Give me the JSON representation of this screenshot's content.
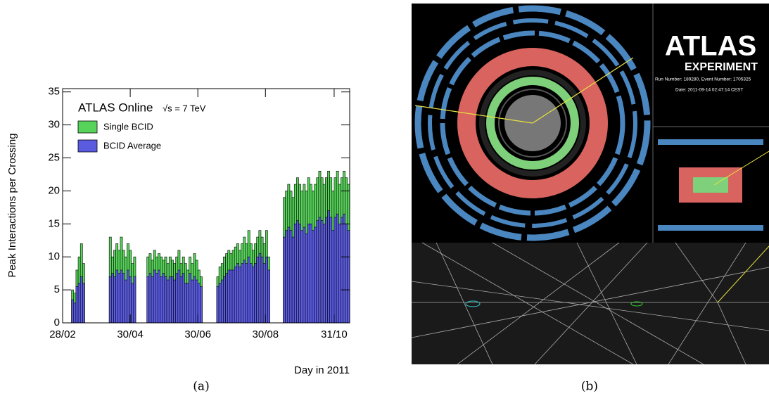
{
  "chart_data": {
    "type": "bar",
    "ylabel": "Peak Interactions per Crossing",
    "xlabel": "Day in 2011",
    "annotations": [
      "ATLAS Online",
      "√s = 7 TeV"
    ],
    "x": [
      68,
      70,
      72,
      74,
      76,
      78,
      102,
      104,
      106,
      108,
      110,
      112,
      114,
      116,
      118,
      120,
      122,
      124,
      136,
      138,
      140,
      142,
      144,
      146,
      148,
      150,
      152,
      154,
      156,
      158,
      160,
      162,
      164,
      166,
      168,
      170,
      172,
      174,
      176,
      178,
      180,
      182,
      184,
      199,
      201,
      203,
      205,
      207,
      209,
      211,
      213,
      215,
      217,
      219,
      221,
      223,
      225,
      227,
      229,
      231,
      233,
      235,
      237,
      239,
      241,
      243,
      245,
      259,
      261,
      263,
      265,
      267,
      269,
      271,
      273,
      275,
      277,
      279,
      281,
      283,
      285,
      287,
      289,
      291,
      293,
      295,
      297,
      299,
      301,
      303,
      305,
      307,
      309,
      311,
      313,
      315,
      317
    ],
    "series": [
      {
        "name": "Single BCID",
        "color": "#57d35a",
        "values": [
          5,
          4.5,
          8,
          10,
          12,
          9,
          13,
          10,
          11,
          12,
          11,
          13,
          11,
          10,
          12,
          11,
          9,
          10,
          10,
          10.5,
          9.5,
          11,
          10,
          10.5,
          10,
          9.5,
          10,
          9,
          10,
          9.5,
          9,
          10,
          11,
          9,
          10,
          9,
          8,
          10,
          9,
          10.5,
          9.5,
          8,
          7,
          7,
          8.5,
          9,
          10,
          10.5,
          11,
          10.5,
          11,
          11.5,
          12,
          11,
          12,
          13,
          12,
          14,
          12,
          11,
          12,
          13,
          14,
          13,
          12,
          14,
          10,
          19,
          20,
          21,
          20,
          19,
          21,
          22,
          21,
          20,
          21,
          20,
          22,
          21,
          20,
          21,
          22,
          23,
          22,
          21,
          22,
          23,
          22,
          20,
          22,
          23,
          21,
          22,
          23,
          22,
          21
        ]
      },
      {
        "name": "BCID Average",
        "color": "#5b5be0",
        "values": [
          3.5,
          3,
          5.5,
          6,
          7,
          6,
          7,
          7.5,
          7,
          8,
          7.5,
          8,
          7.5,
          6.5,
          8,
          7,
          6,
          7,
          7,
          7.5,
          7,
          8,
          7.5,
          8,
          7,
          7.5,
          7,
          6.5,
          7,
          7,
          6.5,
          7.5,
          8,
          7,
          7.5,
          6,
          6,
          7.5,
          6.5,
          7,
          6.5,
          6,
          5.5,
          5.5,
          6,
          6.5,
          7,
          7.5,
          8,
          8,
          8,
          8.5,
          9,
          8.5,
          9,
          9.5,
          9,
          10,
          9,
          8.5,
          9,
          10,
          10.5,
          10,
          9,
          10,
          8,
          13,
          14,
          14.5,
          14,
          13,
          15,
          15.5,
          15,
          14,
          14.5,
          13.5,
          15,
          15,
          14,
          14.5,
          15.5,
          16,
          15.5,
          15,
          16,
          17,
          16,
          14,
          16,
          16.5,
          15,
          16,
          16.5,
          15,
          14
        ]
      }
    ],
    "xlim": [
      59,
      318
    ],
    "xticks": [
      {
        "value": 59,
        "label": "28/02"
      },
      {
        "value": 120,
        "label": "30/04"
      },
      {
        "value": 181,
        "label": "30/06"
      },
      {
        "value": 242,
        "label": "30/08"
      },
      {
        "value": 304,
        "label": "31/10"
      }
    ],
    "ylim": [
      0,
      35.5
    ],
    "yticks": [
      0,
      5,
      10,
      15,
      20,
      25,
      30,
      35
    ]
  },
  "figure": {
    "captions": [
      "(a)",
      "(b)"
    ],
    "event_display": {
      "logo": "ATLAS",
      "logo_sub": "EXPERIMENT",
      "run_info": "Run Number: 189280, Event Number: 1705325",
      "date": "Date: 2011-09-14 02:47:14 CEST"
    }
  }
}
